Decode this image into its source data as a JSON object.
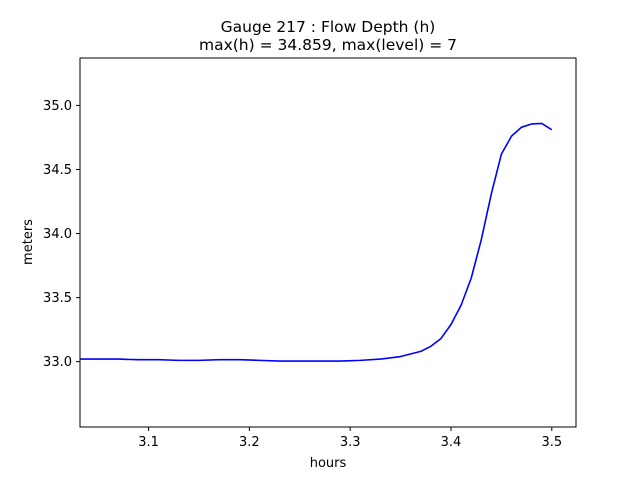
{
  "chart_data": {
    "type": "line",
    "title_line1": "Gauge 217 : Flow Depth (h)",
    "title_line2": "max(h) =  34.859,    max(level) = 7",
    "xlabel": "hours",
    "ylabel": "meters",
    "xlim": [
      3.032,
      3.524
    ],
    "ylim": [
      32.49,
      35.37
    ],
    "xticks": [
      3.1,
      3.2,
      3.3,
      3.4,
      3.5
    ],
    "xtick_labels": [
      "3.1",
      "3.2",
      "3.3",
      "3.4",
      "3.5"
    ],
    "yticks": [
      33.0,
      33.5,
      34.0,
      34.5,
      35.0
    ],
    "ytick_labels": [
      "33.0",
      "33.5",
      "34.0",
      "34.5",
      "35.0"
    ],
    "grid": false,
    "colors": {
      "line": "#0000ff",
      "axes": "#000000",
      "background": "#ffffff"
    },
    "series": [
      {
        "x": [
          3.032,
          3.05,
          3.07,
          3.09,
          3.11,
          3.13,
          3.15,
          3.17,
          3.19,
          3.21,
          3.23,
          3.25,
          3.27,
          3.29,
          3.31,
          3.33,
          3.35,
          3.37,
          3.38,
          3.39,
          3.4,
          3.41,
          3.42,
          3.43,
          3.44,
          3.45,
          3.46,
          3.47,
          3.48,
          3.49,
          3.5
        ],
        "y": [
          33.02,
          33.02,
          33.02,
          33.015,
          33.015,
          33.01,
          33.01,
          33.015,
          33.015,
          33.01,
          33.005,
          33.005,
          33.005,
          33.005,
          33.01,
          33.02,
          33.04,
          33.08,
          33.12,
          33.18,
          33.29,
          33.44,
          33.65,
          33.95,
          34.31,
          34.62,
          34.76,
          34.83,
          34.855,
          34.859,
          34.81
        ]
      }
    ]
  }
}
